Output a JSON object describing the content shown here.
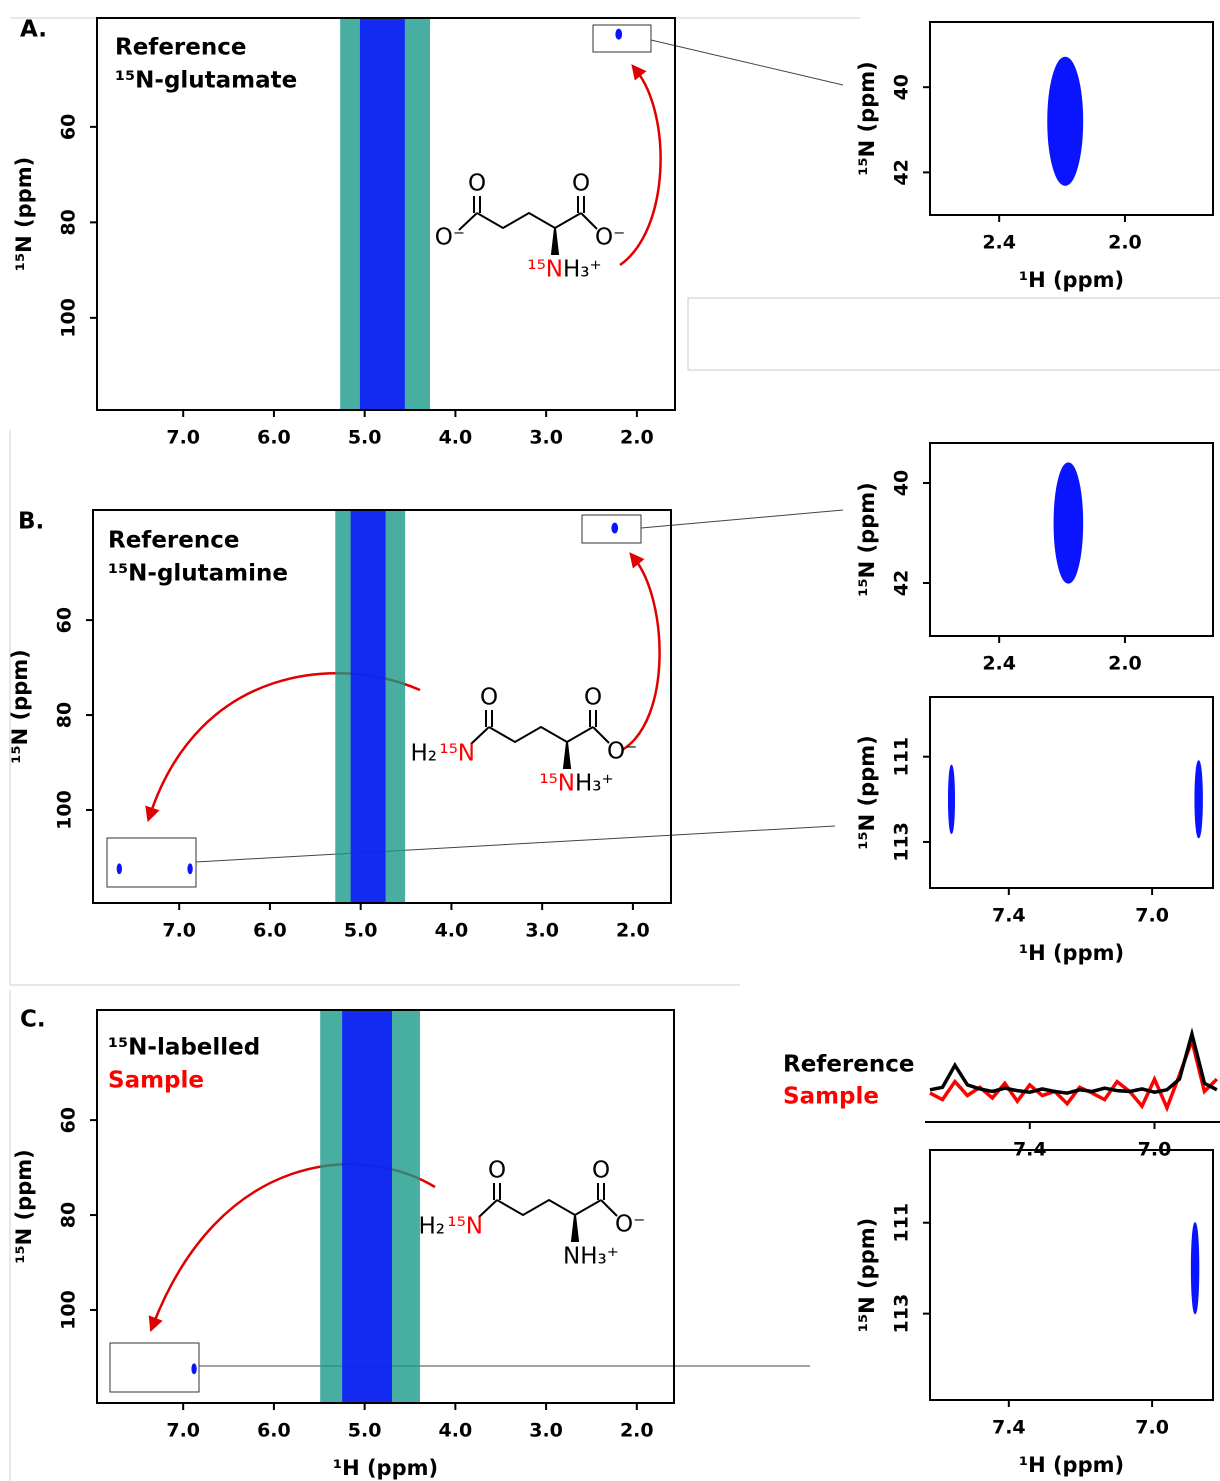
{
  "chart_data": [
    {
      "type": "contour",
      "label": "A.",
      "title": [
        "Reference",
        "¹⁵N-glutamate"
      ],
      "title_colors": [
        "#000000",
        "#000000"
      ],
      "y_label": "¹⁵N (ppm)",
      "xlim": [
        7.95,
        1.58
      ],
      "ylim": [
        37.2,
        119.3
      ],
      "xticks": [
        {
          "value": 7,
          "label": "7.0"
        },
        {
          "value": 6,
          "label": "6.0"
        },
        {
          "value": 5,
          "label": "5.0"
        },
        {
          "value": 4,
          "label": "4.0"
        },
        {
          "value": 3,
          "label": "3.0"
        },
        {
          "value": 2,
          "label": "2.0"
        }
      ],
      "yticks": [
        60,
        80,
        100
      ],
      "color": "#0a14ff",
      "band_color": "#1a9a8a",
      "water_band": [
        5.27,
        4.28
      ],
      "peaks": [
        {
          "x": 2.2,
          "y": 40.6,
          "dx": 0.06,
          "dy": 2
        }
      ],
      "molecule": [
        {
          "text": "O",
          "color": "#000000"
        },
        {
          "text": "O⁻",
          "color": "#000000"
        },
        {
          "text": "O",
          "color": "#000000"
        },
        {
          "text": "O⁻",
          "color": "#000000"
        },
        {
          "text": "¹⁵N",
          "color": "#ff0000"
        },
        {
          "text": "H₃⁺",
          "color": "#000000"
        }
      ]
    },
    {
      "type": "contour",
      "y_label": "¹⁵N (ppm)",
      "x_label": "¹H (ppm)",
      "xlim": [
        2.62,
        1.72
      ],
      "ylim": [
        38.47,
        43.0
      ],
      "xticks": [
        2.4,
        {
          "value": 2,
          "label": "2.0"
        }
      ],
      "yticks": [
        40,
        42
      ],
      "color": "#0a14ff",
      "peaks": [
        {
          "x": 2.19,
          "y": 40.8,
          "dx": 0.11,
          "dy": 3.0
        }
      ]
    },
    {
      "type": "contour",
      "label": "B.",
      "title": [
        "Reference",
        "¹⁵N-glutamine"
      ],
      "title_colors": [
        "#000000",
        "#000000"
      ],
      "y_label": "¹⁵N (ppm)",
      "xlim": [
        7.95,
        1.58
      ],
      "ylim": [
        36.8,
        119.6
      ],
      "xticks": [
        {
          "value": 7,
          "label": "7.0"
        },
        {
          "value": 6,
          "label": "6.0"
        },
        {
          "value": 5,
          "label": "5.0"
        },
        {
          "value": 4,
          "label": "4.0"
        },
        {
          "value": 3,
          "label": "3.0"
        },
        {
          "value": 2,
          "label": "2.0"
        }
      ],
      "yticks": [
        60,
        80,
        100
      ],
      "color": "#0a14ff",
      "band_color": "#1a9a8a",
      "water_band": [
        5.28,
        4.51
      ],
      "peaks": [
        {
          "x": 2.2,
          "y": 40.6,
          "dx": 0.06,
          "dy": 2
        },
        {
          "x": 7.66,
          "y": 112.4,
          "dx": 0.03,
          "dy": 2
        },
        {
          "x": 6.88,
          "y": 112.4,
          "dx": 0.03,
          "dy": 2
        }
      ],
      "molecule": [
        {
          "text": "O",
          "color": "#000000"
        },
        {
          "text": "H₂",
          "color": "#000000"
        },
        {
          "text": "¹⁵N",
          "color": "#ff0000"
        },
        {
          "text": "O",
          "color": "#000000"
        },
        {
          "text": "O⁻",
          "color": "#000000"
        },
        {
          "text": "¹⁵N",
          "color": "#ff0000"
        },
        {
          "text": "H₃⁺",
          "color": "#000000"
        }
      ]
    },
    {
      "type": "contour",
      "y_label": "¹⁵N (ppm)",
      "xlim": [
        2.62,
        1.72
      ],
      "ylim": [
        39.2,
        43.06
      ],
      "xticks": [
        2.4,
        {
          "value": 2,
          "label": "2.0"
        }
      ],
      "yticks": [
        40,
        42
      ],
      "color": "#0a14ff",
      "peaks": [
        {
          "x": 2.18,
          "y": 40.8,
          "dx": 0.09,
          "dy": 2.4
        }
      ]
    },
    {
      "type": "contour",
      "y_label": "¹⁵N (ppm)",
      "x_label": "¹H (ppm)",
      "xlim": [
        7.62,
        6.83
      ],
      "ylim": [
        109.6,
        114.08
      ],
      "xticks": [
        7.4,
        {
          "value": 7,
          "label": "7.0"
        }
      ],
      "yticks": [
        111,
        113
      ],
      "color": "#0a14ff",
      "peaks": [
        {
          "x": 7.56,
          "y": 112.0,
          "dx": 0.016,
          "dy": 1.6
        },
        {
          "x": 6.87,
          "y": 112.0,
          "dx": 0.02,
          "dy": 1.8
        }
      ]
    },
    {
      "type": "contour",
      "label": "C.",
      "title": [
        "¹⁵N-labelled",
        "Sample"
      ],
      "title_colors": [
        "#000000",
        "#ff0000"
      ],
      "y_label": "¹⁵N (ppm)",
      "x_label": "¹H (ppm)",
      "xlim": [
        7.95,
        1.59
      ],
      "ylim": [
        36.8,
        119.6
      ],
      "xticks": [
        {
          "value": 7,
          "label": "7.0"
        },
        {
          "value": 6,
          "label": "6.0"
        },
        {
          "value": 5,
          "label": "5.0"
        },
        {
          "value": 4,
          "label": "4.0"
        },
        {
          "value": 3,
          "label": "3.0"
        },
        {
          "value": 2,
          "label": "2.0"
        }
      ],
      "yticks": [
        60,
        80,
        100
      ],
      "color": "#0a14ff",
      "band_color": "#1a9a8a",
      "water_band": [
        5.49,
        4.39
      ],
      "peaks": [
        {
          "x": 6.88,
          "y": 112.4,
          "dx": 0.03,
          "dy": 2
        }
      ],
      "molecule": [
        {
          "text": "O",
          "color": "#000000"
        },
        {
          "text": "H₂",
          "color": "#000000"
        },
        {
          "text": "¹⁵N",
          "color": "#ff0000"
        },
        {
          "text": "O",
          "color": "#000000"
        },
        {
          "text": "O⁻",
          "color": "#000000"
        },
        {
          "text": "NH₃⁺",
          "color": "#000000"
        }
      ]
    },
    {
      "type": "line",
      "x": [
        7.72,
        7.68,
        7.64,
        7.6,
        7.56,
        7.52,
        7.48,
        7.44,
        7.4,
        7.36,
        7.32,
        7.28,
        7.24,
        7.2,
        7.16,
        7.12,
        7.08,
        7.04,
        7.0,
        6.96,
        6.92,
        6.88,
        6.84,
        6.8
      ],
      "xlim": [
        7.736,
        6.79
      ],
      "ylim": [
        0,
        1.05
      ],
      "xticks": [
        7.4,
        {
          "value": 7,
          "label": "7.0"
        }
      ],
      "series": [
        {
          "name": "Reference",
          "color": "#000000",
          "values": [
            0.32,
            0.35,
            0.62,
            0.38,
            0.33,
            0.3,
            0.34,
            0.31,
            0.29,
            0.33,
            0.3,
            0.28,
            0.32,
            0.3,
            0.34,
            0.31,
            0.3,
            0.33,
            0.29,
            0.32,
            0.45,
            1.0,
            0.4,
            0.32
          ]
        },
        {
          "name": "Sample",
          "color": "#ff0000",
          "values": [
            0.28,
            0.2,
            0.42,
            0.25,
            0.35,
            0.22,
            0.4,
            0.18,
            0.38,
            0.25,
            0.3,
            0.15,
            0.35,
            0.28,
            0.2,
            0.42,
            0.3,
            0.12,
            0.45,
            0.1,
            0.5,
            0.92,
            0.3,
            0.45
          ]
        }
      ]
    },
    {
      "type": "contour",
      "y_label": "¹⁵N (ppm)",
      "x_label": "¹H (ppm)",
      "xlim": [
        7.62,
        6.83
      ],
      "ylim": [
        109.4,
        114.9
      ],
      "xticks": [
        7.4,
        {
          "value": 7,
          "label": "7.0"
        }
      ],
      "yticks": [
        111,
        113
      ],
      "color": "#0a14ff",
      "peaks": [
        {
          "x": 6.88,
          "y": 112.0,
          "dx": 0.02,
          "dy": 2.0
        }
      ]
    }
  ]
}
